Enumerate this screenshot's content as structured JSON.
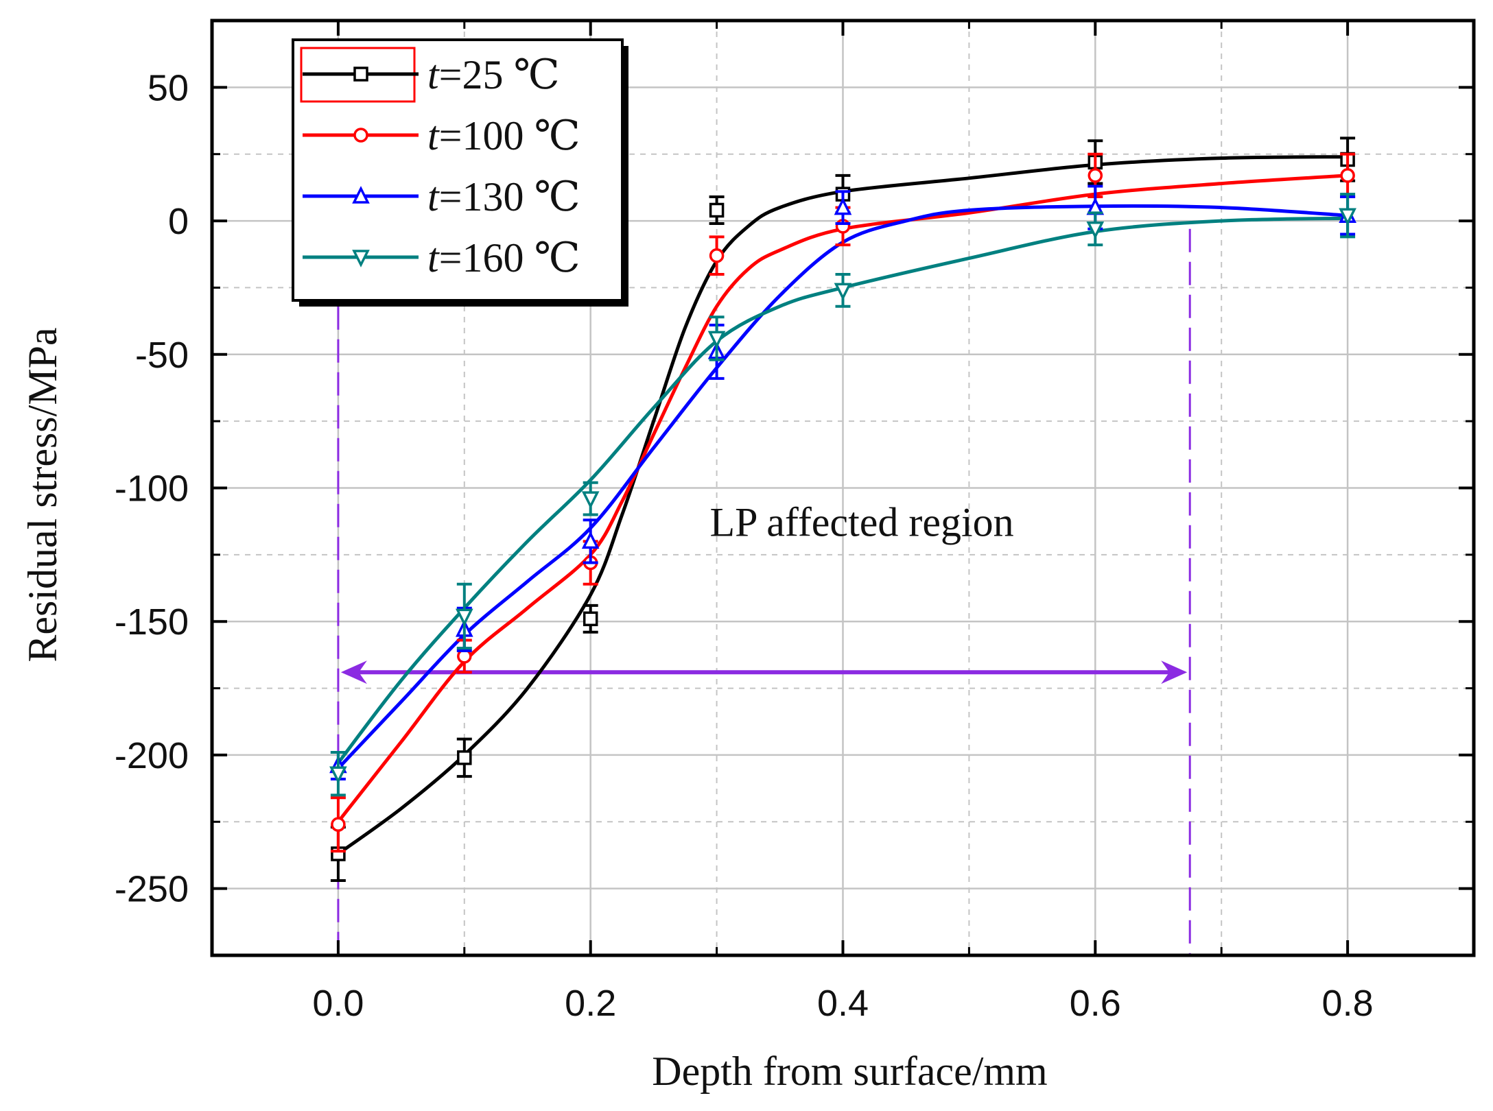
{
  "chart_data": {
    "type": "line",
    "title": "",
    "xlabel": "Depth from surface/mm",
    "ylabel": "Residual stress/MPa",
    "xlim": [
      -0.1,
      0.9
    ],
    "ylim": [
      -275,
      75
    ],
    "xticks": [
      0.0,
      0.2,
      0.4,
      0.6,
      0.8
    ],
    "xtick_labels": [
      "0.0",
      "0.2",
      "0.4",
      "0.6",
      "0.8"
    ],
    "xticks_minor": [
      0.1,
      0.3,
      0.5,
      0.7
    ],
    "yticks": [
      50,
      0,
      -50,
      -100,
      -150,
      -200,
      -250
    ],
    "ytick_labels": [
      "50",
      "0",
      "-50",
      "-100",
      "-150",
      "-200",
      "-250"
    ],
    "yticks_minor": [
      25,
      -25,
      -75,
      -125,
      -175,
      -225
    ],
    "grid": true,
    "legend_position": "top-left",
    "series": [
      {
        "name": "t=25 ℃",
        "legend_var": "t",
        "legend_rest": "=25 ℃",
        "color": "#000000",
        "marker": "square",
        "x": [
          0.0,
          0.1,
          0.2,
          0.3,
          0.4,
          0.6,
          0.8
        ],
        "y": [
          -237,
          -201,
          -149,
          4,
          10,
          22,
          23
        ],
        "err": [
          10,
          7,
          5,
          5,
          7,
          8,
          8
        ],
        "fit": [
          [
            0.0,
            -237
          ],
          [
            0.05,
            -220
          ],
          [
            0.1,
            -200
          ],
          [
            0.15,
            -175
          ],
          [
            0.2,
            -140
          ],
          [
            0.225,
            -110
          ],
          [
            0.25,
            -75
          ],
          [
            0.275,
            -40
          ],
          [
            0.3,
            -15
          ],
          [
            0.325,
            -2
          ],
          [
            0.35,
            5
          ],
          [
            0.4,
            11
          ],
          [
            0.5,
            16
          ],
          [
            0.6,
            21
          ],
          [
            0.7,
            23.5
          ],
          [
            0.8,
            24
          ]
        ]
      },
      {
        "name": "t=100 ℃",
        "legend_var": "t",
        "legend_rest": "=100 ℃",
        "color": "#ff0000",
        "marker": "circle",
        "x": [
          0.0,
          0.1,
          0.2,
          0.3,
          0.4,
          0.6,
          0.8
        ],
        "y": [
          -226,
          -163,
          -128,
          -13,
          -2,
          17,
          17
        ],
        "err": [
          10,
          6,
          8,
          7,
          7,
          8,
          8
        ],
        "fit": [
          [
            0.0,
            -225
          ],
          [
            0.05,
            -195
          ],
          [
            0.1,
            -165
          ],
          [
            0.15,
            -145
          ],
          [
            0.2,
            -125
          ],
          [
            0.225,
            -105
          ],
          [
            0.25,
            -80
          ],
          [
            0.275,
            -55
          ],
          [
            0.3,
            -32
          ],
          [
            0.325,
            -18
          ],
          [
            0.35,
            -11
          ],
          [
            0.4,
            -3
          ],
          [
            0.5,
            3
          ],
          [
            0.6,
            10
          ],
          [
            0.7,
            14
          ],
          [
            0.8,
            17
          ]
        ]
      },
      {
        "name": "t=130 ℃",
        "legend_var": "t",
        "legend_rest": "=130 ℃",
        "color": "#0000ff",
        "marker": "triangle-up",
        "x": [
          0.0,
          0.1,
          0.2,
          0.3,
          0.4,
          0.6,
          0.8
        ],
        "y": [
          -204,
          -153,
          -120,
          -49,
          5,
          5,
          2
        ],
        "err": [
          5,
          8,
          8,
          10,
          6,
          8,
          7
        ],
        "fit": [
          [
            0.0,
            -205
          ],
          [
            0.05,
            -180
          ],
          [
            0.1,
            -155
          ],
          [
            0.15,
            -135
          ],
          [
            0.2,
            -115
          ],
          [
            0.25,
            -85
          ],
          [
            0.3,
            -55
          ],
          [
            0.35,
            -28
          ],
          [
            0.4,
            -8
          ],
          [
            0.45,
            0
          ],
          [
            0.5,
            4
          ],
          [
            0.6,
            5.5
          ],
          [
            0.7,
            5
          ],
          [
            0.8,
            2
          ]
        ]
      },
      {
        "name": "t=160 ℃",
        "legend_var": "t",
        "legend_rest": "=160 ℃",
        "color": "#008080",
        "marker": "triangle-down",
        "x": [
          0.0,
          0.1,
          0.2,
          0.3,
          0.4,
          0.6,
          0.8
        ],
        "y": [
          -207,
          -148,
          -104,
          -44,
          -26,
          -3,
          2
        ],
        "err": [
          8,
          12,
          6,
          8,
          6,
          6,
          8
        ],
        "fit": [
          [
            0.0,
            -203
          ],
          [
            0.05,
            -172
          ],
          [
            0.1,
            -145
          ],
          [
            0.15,
            -120
          ],
          [
            0.2,
            -97
          ],
          [
            0.25,
            -70
          ],
          [
            0.3,
            -45
          ],
          [
            0.35,
            -32
          ],
          [
            0.4,
            -25
          ],
          [
            0.5,
            -14
          ],
          [
            0.6,
            -4
          ],
          [
            0.7,
            0
          ],
          [
            0.8,
            1
          ]
        ]
      }
    ],
    "annotations": {
      "region_label": "LP affected region",
      "region_label_pos": [
        0.415,
        -118
      ],
      "region_start_x": 0.0,
      "region_end_x": 0.675,
      "arrow_y": -169,
      "arrow_color": "#8b2be2",
      "guide_line_color": "#8b2be2"
    }
  }
}
